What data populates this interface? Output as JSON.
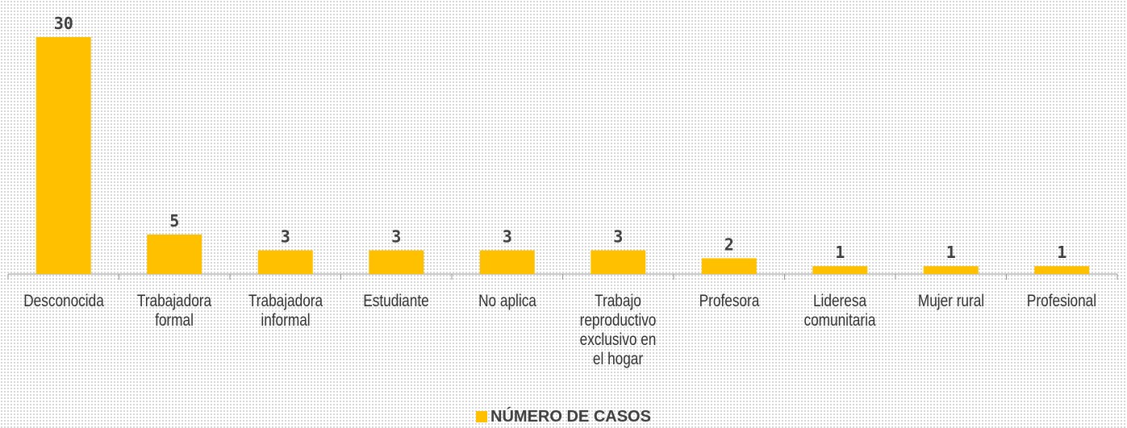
{
  "chart_data": {
    "type": "bar",
    "categories": [
      "Desconocida",
      "Trabajadora formal",
      "Trabajadora informal",
      "Estudiante",
      "No aplica",
      "Trabajo reproductivo exclusivo en el hogar",
      "Profesora",
      "Lideresa comunitaria",
      "Mujer rural",
      "Profesional"
    ],
    "series": [
      {
        "name": "NÚMERO DE CASOS",
        "color": "#ffc000",
        "values": [
          30,
          5,
          3,
          3,
          3,
          3,
          2,
          1,
          1,
          1
        ]
      }
    ],
    "legend": "bottom"
  }
}
